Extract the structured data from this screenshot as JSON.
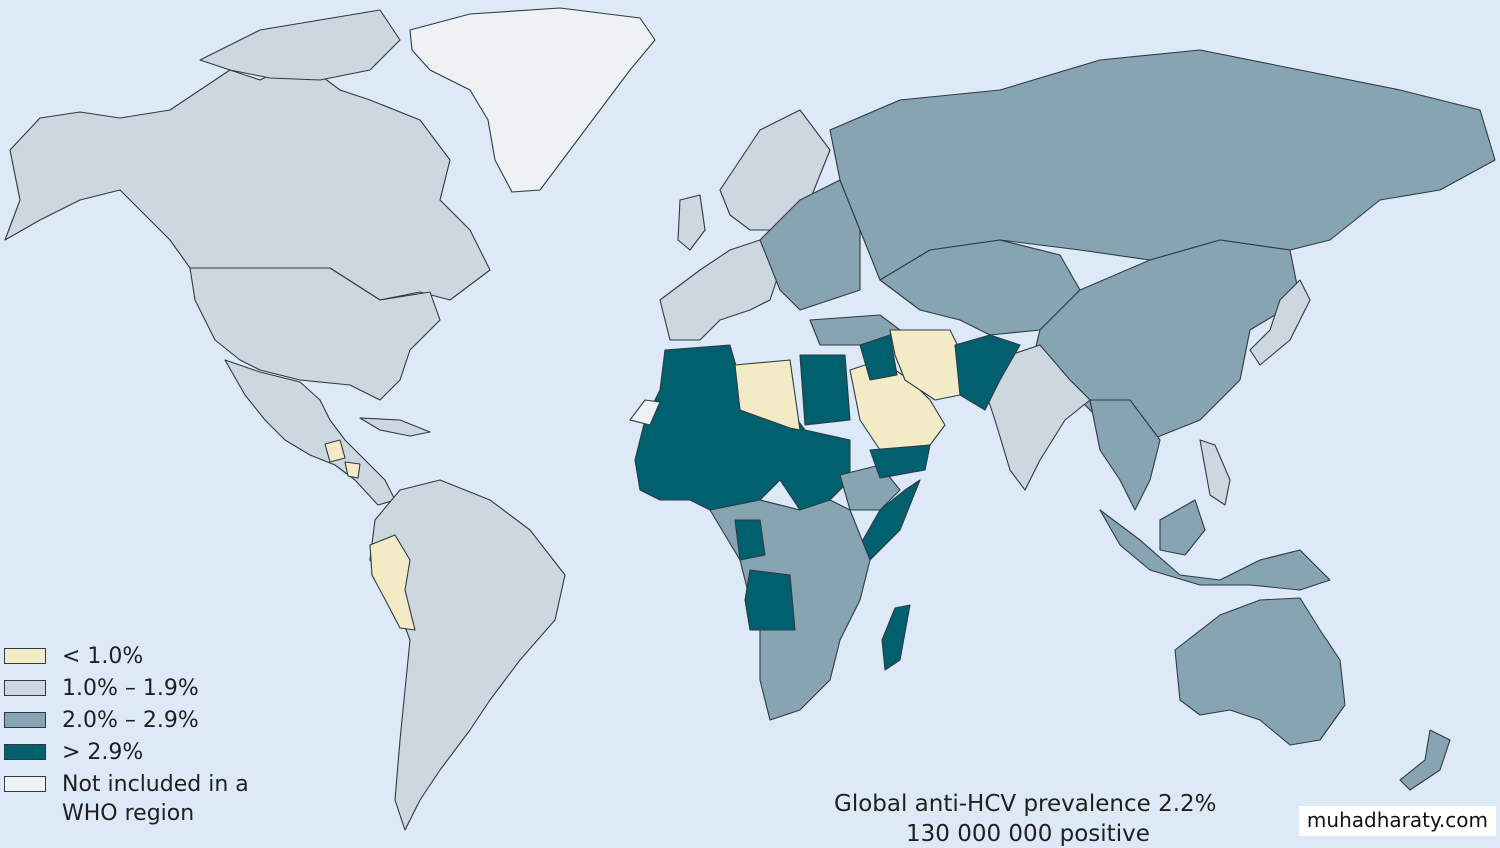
{
  "map": {
    "colors": {
      "ocean": "#dde9f6",
      "lt1": "#f2ebc6",
      "c1_19": "#cdd7df",
      "c2_29": "#87a4b2",
      "gt29": "#00606e",
      "not_included": "#eef2f4"
    }
  },
  "legend": {
    "items": [
      {
        "label": "< 1.0%",
        "color": "#f2ebc6"
      },
      {
        "label": "1.0% – 1.9%",
        "color": "#cdd7df"
      },
      {
        "label": "2.0% – 2.9%",
        "color": "#87a4b2"
      },
      {
        "label": "> 2.9%",
        "color": "#00606e"
      },
      {
        "label": "Not included in a WHO region",
        "color": "#eef2f4"
      }
    ]
  },
  "caption": {
    "line1": "Global anti-HCV prevalence 2.2%",
    "line2": "130 000 000 positive"
  },
  "watermark": "muhadharaty.com"
}
